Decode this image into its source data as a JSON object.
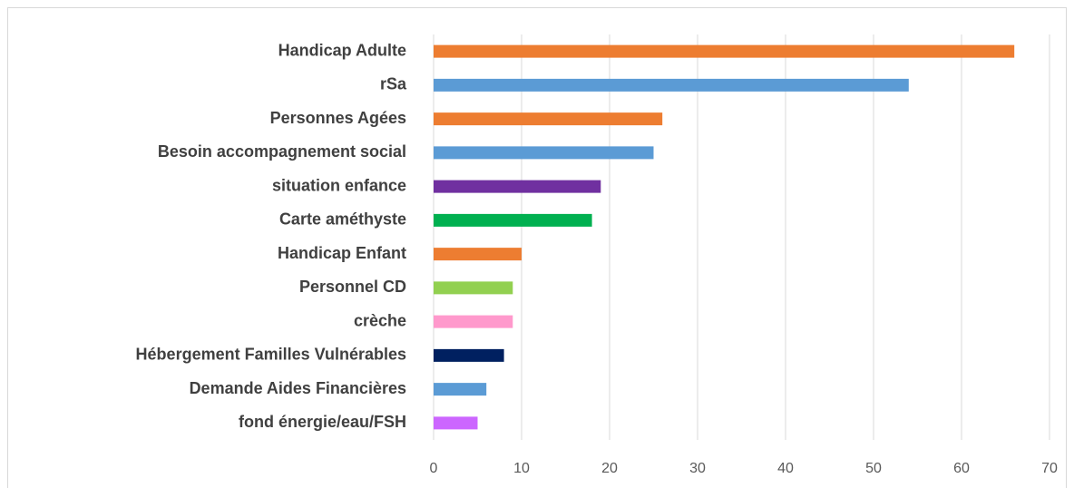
{
  "chart_data": {
    "type": "bar",
    "horizontal": true,
    "categories": [
      "Handicap  Adulte",
      "rSa",
      "Personnes  Agées",
      "Besoin accompagnement  social",
      "situation enfance",
      "Carte améthyste",
      "Handicap Enfant",
      "Personnel CD",
      "crèche",
      "Hébergement Familles Vulnérables",
      "Demande Aides Financières",
      "fond énergie/eau/FSH"
    ],
    "values": [
      66,
      54,
      26,
      25,
      19,
      18,
      10,
      9,
      9,
      8,
      6,
      5
    ],
    "colors": [
      "#ed7d31",
      "#5b9bd5",
      "#ed7d31",
      "#5b9bd5",
      "#7030a0",
      "#00b050",
      "#ed7d31",
      "#92d050",
      "#ff99cc",
      "#002060",
      "#5b9bd5",
      "#cc66ff"
    ],
    "xlim": [
      0,
      70
    ],
    "xticks": [
      0,
      10,
      20,
      30,
      40,
      50,
      60,
      70
    ],
    "grid": true
  }
}
